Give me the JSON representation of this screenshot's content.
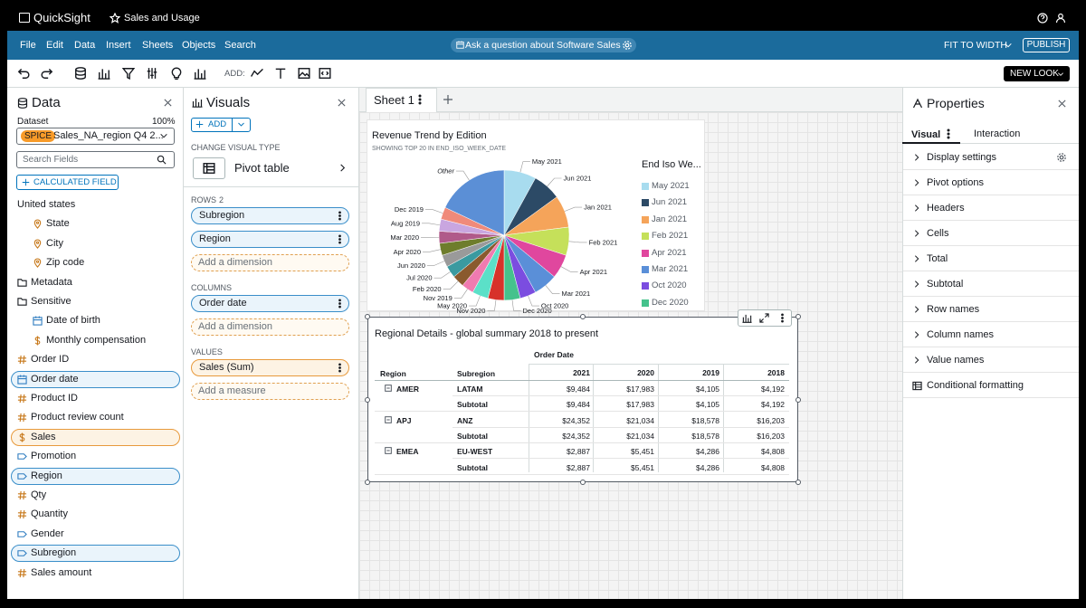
{
  "topbar": {
    "logo": "QuickSight",
    "analysis": "Sales and Usage"
  },
  "menu": {
    "items": [
      "File",
      "Edit",
      "Data",
      "Insert",
      "Sheets",
      "Objects",
      "Search"
    ],
    "ask": "Ask a question about Software Sales",
    "fit": "FIT TO WIDTH",
    "publish": "PUBLISH"
  },
  "toolbar": {
    "add": "ADD:",
    "new_look": "NEW LOOK"
  },
  "data_panel": {
    "title": "Data",
    "dataset_label": "Dataset",
    "dataset_pct": "100%",
    "spice": "SPICE",
    "dataset": "Sales_NA_region Q4 2...",
    "search": "Search Fields",
    "calculated": "CALCULATED FIELD",
    "fields": [
      {
        "label": "United states",
        "icon": "none",
        "indent": false,
        "selected": "none"
      },
      {
        "label": "State",
        "icon": "geo",
        "indent": true,
        "selected": "none"
      },
      {
        "label": "City",
        "icon": "geo",
        "indent": true,
        "selected": "none"
      },
      {
        "label": "Zip code",
        "icon": "geo",
        "indent": true,
        "selected": "none"
      },
      {
        "label": "Metadata",
        "icon": "folder",
        "indent": false,
        "selected": "none"
      },
      {
        "label": "Sensitive",
        "icon": "folder",
        "indent": false,
        "selected": "none"
      },
      {
        "label": "Date of birth",
        "icon": "date",
        "indent": true,
        "selected": "none"
      },
      {
        "label": "Monthly compensation",
        "icon": "dollar",
        "indent": true,
        "selected": "none"
      },
      {
        "label": "Order ID",
        "icon": "hash",
        "indent": false,
        "selected": "none"
      },
      {
        "label": "Order date",
        "icon": "date",
        "indent": false,
        "selected": "dimension"
      },
      {
        "label": "Product ID",
        "icon": "hash",
        "indent": false,
        "selected": "none"
      },
      {
        "label": "Product review count",
        "icon": "hash",
        "indent": false,
        "selected": "none"
      },
      {
        "label": "Sales",
        "icon": "dollar",
        "indent": false,
        "selected": "measure"
      },
      {
        "label": "Promotion",
        "icon": "tag",
        "indent": false,
        "selected": "none"
      },
      {
        "label": "Region",
        "icon": "tag",
        "indent": false,
        "selected": "dimension"
      },
      {
        "label": "Qty",
        "icon": "hash",
        "indent": false,
        "selected": "none"
      },
      {
        "label": "Quantity",
        "icon": "hash",
        "indent": false,
        "selected": "none"
      },
      {
        "label": "Gender",
        "icon": "tag",
        "indent": false,
        "selected": "none"
      },
      {
        "label": "Subregion",
        "icon": "tag",
        "indent": false,
        "selected": "dimension"
      },
      {
        "label": "Sales amount",
        "icon": "hash",
        "indent": false,
        "selected": "none"
      }
    ]
  },
  "visuals_panel": {
    "title": "Visuals",
    "add": "ADD",
    "change_type": "CHANGE VISUAL TYPE",
    "visual_type": "Pivot table",
    "rows_label": "ROWS",
    "rows_count": "2",
    "rows": [
      "Subregion",
      "Region"
    ],
    "rows_add": "Add a dimension",
    "columns_label": "COLUMNS",
    "columns": [
      "Order date"
    ],
    "columns_add": "Add a dimension",
    "values_label": "VALUES",
    "values": [
      "Sales (Sum)"
    ],
    "values_add": "Add a measure"
  },
  "sheet": {
    "tab": "Sheet 1"
  },
  "pie_visual": {
    "type": "pie",
    "title": "Revenue Trend by Edition",
    "subtitle": "SHOWING TOP 20 IN END_ISO_WEEK_DATE",
    "legend_title": "End Iso We...",
    "categories": [
      "May 2021",
      "Jun 2021",
      "Jan 2021",
      "Feb 2021",
      "Apr 2021",
      "Mar 2021",
      "Oct 2020",
      "Dec 2020",
      "Nov 2020",
      "May 2020",
      "Nov 2019",
      "Feb 2020",
      "Jul 2020",
      "Jun 2020",
      "Apr 2020",
      "Mar 2020",
      "Aug 2019",
      "Dec 2019",
      "Other"
    ],
    "values": [
      8,
      7,
      8,
      7,
      6,
      6,
      4,
      4,
      4,
      4,
      3,
      3,
      3,
      3,
      3,
      3,
      3,
      3,
      18
    ],
    "colors": [
      "#a8dcef",
      "#2c4a66",
      "#f5a45a",
      "#c5e05a",
      "#e0479e",
      "#5a8fd8",
      "#7b4de0",
      "#45c28c",
      "#d7322a",
      "#5be0c8",
      "#f07ab0",
      "#8a5a2e",
      "#3a9aa0",
      "#9a9a9a",
      "#6e7d2c",
      "#b05a8a",
      "#c9a6e0",
      "#f08a7a",
      "#5b8fd6"
    ],
    "legend_count": 8
  },
  "table_visual": {
    "title": "Regional Details  - global summary 2018 to present",
    "column_group": "Order Date",
    "row_headers": [
      "Region",
      "Subregion"
    ],
    "years": [
      "2021",
      "2020",
      "2019",
      "2018"
    ],
    "groups": [
      {
        "region": "AMER",
        "rows": [
          [
            "LATAM",
            "$9,484",
            "$17,983",
            "$4,105",
            "$4,192"
          ],
          [
            "Subtotal",
            "$9,484",
            "$17,983",
            "$4,105",
            "$4,192"
          ]
        ]
      },
      {
        "region": "APJ",
        "rows": [
          [
            "ANZ",
            "$24,352",
            "$21,034",
            "$18,578",
            "$16,203"
          ],
          [
            "Subtotal",
            "$24,352",
            "$21,034",
            "$18,578",
            "$16,203"
          ]
        ]
      },
      {
        "region": "EMEA",
        "rows": [
          [
            "EU-WEST",
            "$2,887",
            "$5,451",
            "$4,286",
            "$4,808"
          ],
          [
            "Subtotal",
            "$2,887",
            "$5,451",
            "$4,286",
            "$4,808"
          ]
        ]
      }
    ]
  },
  "properties": {
    "title": "Properties",
    "tabs": [
      "Visual",
      "Interaction"
    ],
    "items": [
      "Display settings",
      "Pivot options",
      "Headers",
      "Cells",
      "Total",
      "Subtotal",
      "Row names",
      "Column names",
      "Value names",
      "Conditional formatting"
    ]
  }
}
